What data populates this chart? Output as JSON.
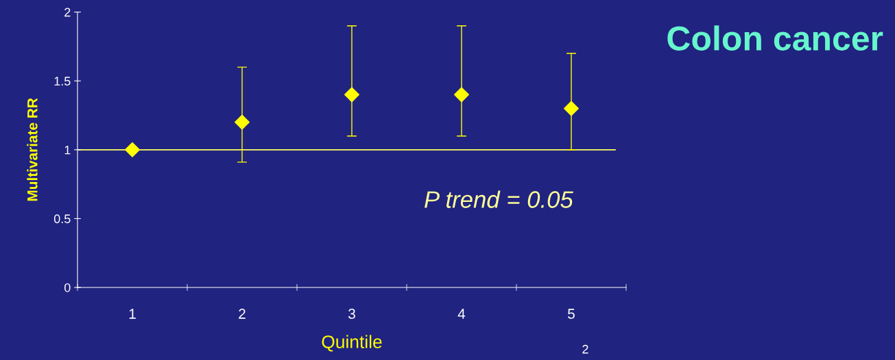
{
  "chart_data": {
    "type": "scatter",
    "title": "Colon cancer",
    "xlabel": "Quintile",
    "ylabel": "Multivariate RR",
    "categories": [
      "1",
      "2",
      "3",
      "4",
      "5"
    ],
    "values": [
      1.0,
      1.2,
      1.4,
      1.4,
      1.3
    ],
    "errors": [
      null,
      [
        0.91,
        1.6
      ],
      [
        1.1,
        1.9
      ],
      [
        1.1,
        1.9
      ],
      [
        1.0,
        1.7
      ]
    ],
    "color": "#ffff00",
    "marker": "diamond",
    "ylim": [
      0,
      2
    ],
    "yticks": [
      0,
      0.5,
      1,
      1.5,
      2
    ],
    "ref_lines": [
      {
        "axis": "y",
        "value": 1,
        "color": "#ffff66"
      }
    ],
    "annotations": [
      "P trend = 0.05",
      "2"
    ],
    "grid": false,
    "legend": false
  }
}
